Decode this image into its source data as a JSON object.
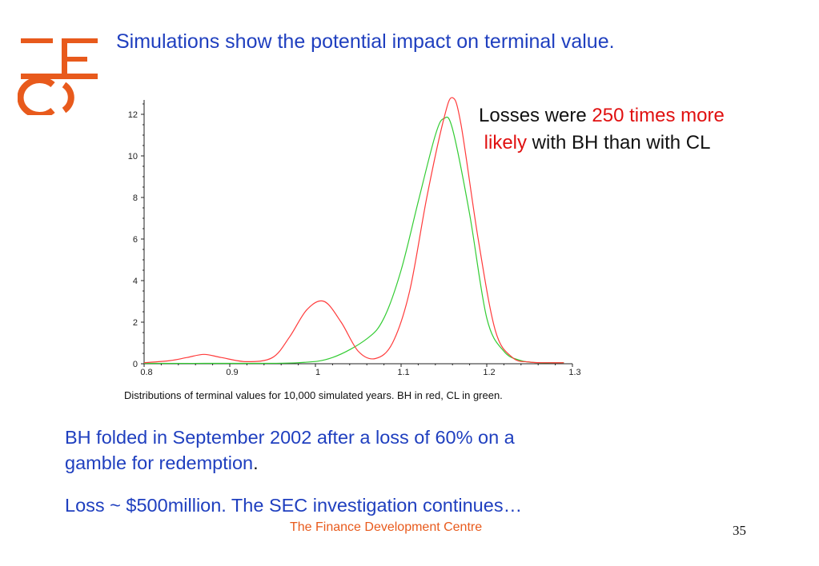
{
  "slide": {
    "title": "Simulations show the potential impact on terminal value.",
    "callout": {
      "prefix": "Losses were ",
      "highlight_1": "250 times more",
      "highlight_2": "likely",
      "suffix": " with BH than with CL"
    },
    "paragraph_1": {
      "line_1": "BH folded in September 2002 after a loss of 60% on a",
      "line_2": "gamble for redemption",
      "period": "."
    },
    "paragraph_2": "Loss ~ $500million.  The SEC investigation continues…",
    "footer": "The Finance Development Centre",
    "page_number": "35",
    "logo": {
      "icon": "fdc-logo-icon",
      "color": "#e85a1c"
    }
  },
  "chart_data": {
    "type": "line",
    "title": "",
    "caption": "Distributions of terminal values for 10,000 simulated years. BH in red, CL in green.",
    "xlabel": "",
    "ylabel": "",
    "xlim": [
      0.8,
      1.3
    ],
    "ylim": [
      0,
      12.5
    ],
    "x_ticks": [
      "0.8",
      "0.9",
      "1",
      "1.1",
      "1.2",
      "1.3"
    ],
    "y_ticks": [
      "0",
      "2",
      "4",
      "6",
      "8",
      "10",
      "12"
    ],
    "grid": false,
    "series": [
      {
        "name": "BH",
        "color": "#ff3b3b",
        "x": [
          0.8,
          0.83,
          0.85,
          0.87,
          0.89,
          0.92,
          0.95,
          0.97,
          0.99,
          1.01,
          1.03,
          1.05,
          1.07,
          1.09,
          1.11,
          1.13,
          1.15,
          1.16,
          1.17,
          1.19,
          1.21,
          1.23,
          1.25,
          1.27,
          1.29
        ],
        "y": [
          0.05,
          0.15,
          0.3,
          0.45,
          0.3,
          0.1,
          0.3,
          1.3,
          2.6,
          3.0,
          2.0,
          0.6,
          0.25,
          1.0,
          3.5,
          8.0,
          11.8,
          12.8,
          11.5,
          6.0,
          1.6,
          0.3,
          0.08,
          0.05,
          0.05
        ]
      },
      {
        "name": "CL",
        "color": "#33cc33",
        "x": [
          0.8,
          0.9,
          0.98,
          1.02,
          1.06,
          1.08,
          1.1,
          1.12,
          1.14,
          1.15,
          1.16,
          1.18,
          1.2,
          1.22,
          1.24,
          1.26,
          1.28,
          1.29
        ],
        "y": [
          0.02,
          0.02,
          0.05,
          0.3,
          1.2,
          2.2,
          4.5,
          7.8,
          11.0,
          11.8,
          11.3,
          7.2,
          2.2,
          0.6,
          0.15,
          0.05,
          0.05,
          0.05
        ]
      }
    ]
  }
}
